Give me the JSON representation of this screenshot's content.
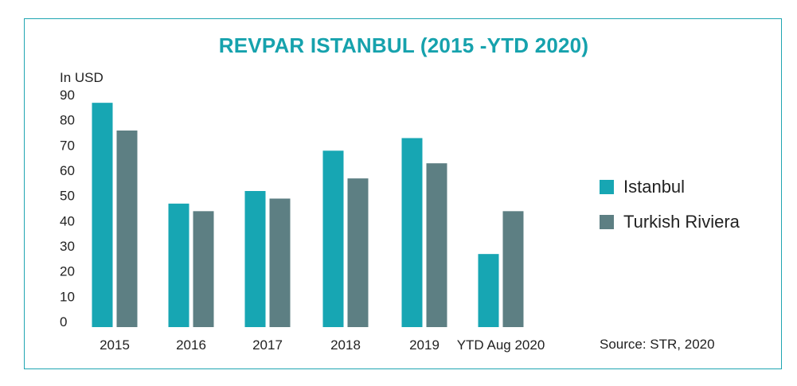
{
  "chart_data": {
    "type": "bar",
    "title": "REVPAR ISTANBUL (2015 -YTD 2020)",
    "ylabel": "In USD",
    "xlabel": "",
    "categories": [
      "2015",
      "2016",
      "2017",
      "2018",
      "2019",
      "YTD Aug 2020"
    ],
    "yticks": [
      0,
      10,
      20,
      30,
      40,
      50,
      60,
      70,
      80,
      90
    ],
    "ylim": [
      0,
      90
    ],
    "series": [
      {
        "name": "Istanbul",
        "color": "#17a6b3",
        "values": [
          89,
          49,
          54,
          70,
          75,
          29
        ]
      },
      {
        "name": "Turkish Riviera",
        "color": "#5d7f83",
        "values": [
          78,
          46,
          51,
          59,
          65,
          46
        ]
      }
    ],
    "legend_position": "right",
    "grid": false,
    "source": "Source: STR, 2020"
  }
}
